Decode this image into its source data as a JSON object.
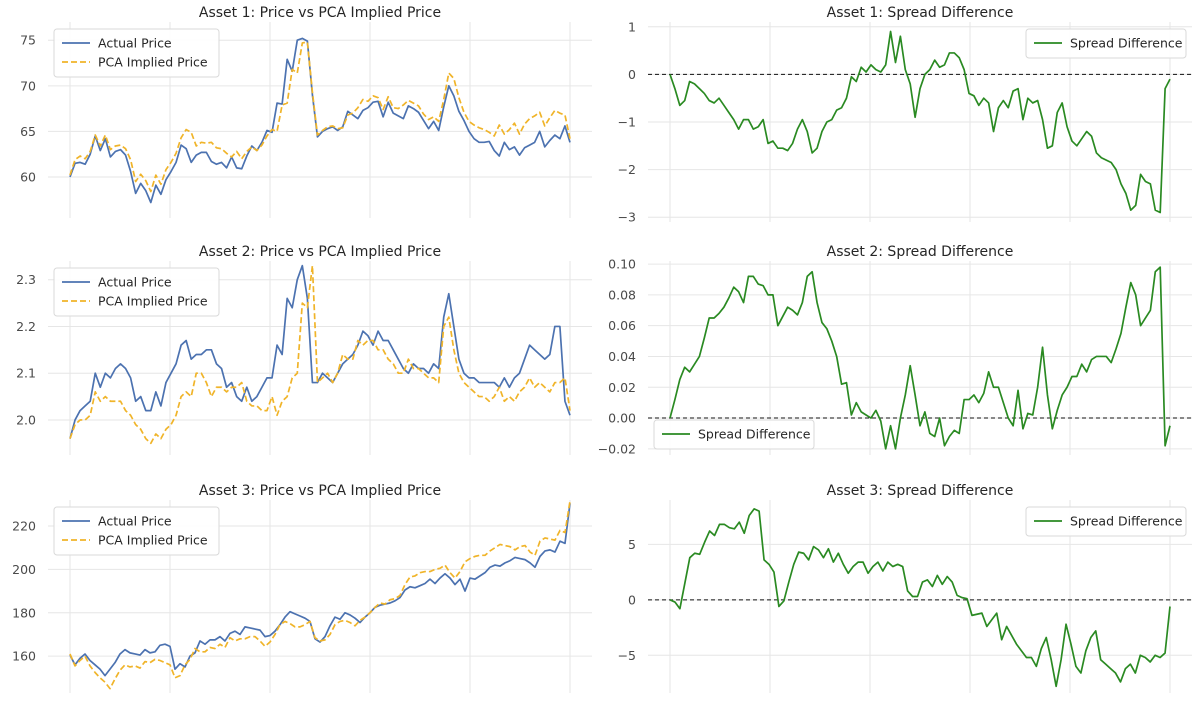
{
  "chart_data": [
    {
      "type": "line",
      "title": "Asset 1: Price vs PCA Implied Price",
      "legend": "top-left",
      "grid": true,
      "ylim": [
        55.5,
        77.0
      ],
      "yticks": [
        "60",
        "65",
        "70",
        "75"
      ],
      "series": [
        {
          "name": "Actual Price",
          "color": "#4c72b0",
          "style": "solid",
          "values": [
            60.0,
            61.5,
            61.6,
            61.4,
            62.5,
            64.5,
            62.9,
            64.2,
            62.2,
            62.8,
            63.0,
            62.4,
            60.6,
            58.2,
            59.3,
            58.5,
            57.2,
            59.1,
            58.1,
            59.7,
            60.6,
            61.6,
            63.5,
            63.1,
            61.6,
            62.4,
            62.7,
            62.7,
            61.7,
            61.4,
            61.6,
            61.0,
            62.2,
            61.0,
            60.9,
            62.3,
            63.4,
            62.9,
            63.8,
            65.1,
            64.9,
            68.1,
            68.0,
            72.9,
            71.6,
            75.0,
            75.2,
            74.9,
            69.0,
            64.4,
            65.0,
            65.3,
            65.5,
            65.1,
            65.5,
            67.2,
            66.8,
            66.4,
            67.3,
            67.6,
            68.2,
            68.3,
            66.6,
            68.2,
            67.0,
            66.7,
            66.4,
            67.8,
            67.5,
            67.1,
            66.2,
            65.3,
            66.1,
            65.1,
            67.7,
            70.0,
            68.9,
            67.2,
            66.2,
            65.0,
            64.2,
            63.8,
            63.8,
            63.9,
            62.9,
            62.3,
            63.8,
            63.0,
            63.3,
            62.4,
            63.2,
            63.5,
            63.8,
            65.0,
            63.3,
            64.0,
            64.6,
            64.2,
            65.6,
            63.8
          ]
        },
        {
          "name": "PCA Implied Price",
          "color": "#f0b429",
          "style": "dashed",
          "values": [
            60.2,
            61.9,
            62.3,
            62.0,
            62.8,
            64.6,
            63.4,
            64.6,
            63.0,
            63.4,
            63.5,
            63.1,
            61.9,
            59.5,
            60.3,
            59.6,
            58.4,
            60.2,
            59.2,
            60.8,
            61.6,
            62.6,
            64.3,
            65.2,
            64.9,
            63.4,
            63.8,
            63.7,
            63.8,
            63.2,
            63.1,
            62.6,
            62.2,
            62.8,
            62.0,
            62.8,
            63.3,
            62.9,
            63.5,
            64.5,
            65.2,
            65.0,
            67.9,
            68.1,
            71.8,
            71.4,
            74.7,
            74.8,
            69.3,
            64.6,
            65.1,
            65.5,
            65.6,
            65.3,
            65.4,
            66.8,
            67.0,
            67.6,
            68.5,
            68.3,
            68.9,
            68.7,
            67.4,
            68.8,
            67.6,
            67.5,
            67.9,
            68.4,
            68.1,
            67.8,
            66.9,
            66.3,
            66.6,
            66.1,
            68.5,
            71.4,
            70.8,
            68.7,
            67.1,
            66.1,
            65.7,
            65.4,
            65.2,
            64.9,
            64.5,
            65.7,
            64.7,
            65.2,
            65.9,
            64.7,
            65.8,
            66.4,
            66.7,
            67.1,
            65.6,
            66.5,
            67.3,
            67.0,
            66.8,
            64.2
          ]
        }
      ]
    },
    {
      "type": "line",
      "title": "Asset 1: Spread Difference",
      "legend": "top-right",
      "grid": true,
      "ylim": [
        -3.1,
        1.1
      ],
      "yticks": [
        "−3",
        "−2",
        "−1",
        "0",
        "1"
      ],
      "zero_line": true,
      "series": [
        {
          "name": "Spread Difference",
          "color": "#2a8a22",
          "style": "solid",
          "values": [
            0.0,
            -0.3,
            -0.65,
            -0.55,
            -0.15,
            -0.2,
            -0.3,
            -0.4,
            -0.55,
            -0.6,
            -0.5,
            -0.65,
            -0.8,
            -0.95,
            -1.15,
            -0.95,
            -0.95,
            -1.15,
            -1.1,
            -0.95,
            -1.45,
            -1.4,
            -1.55,
            -1.55,
            -1.6,
            -1.45,
            -1.15,
            -0.95,
            -1.2,
            -1.65,
            -1.55,
            -1.2,
            -1.0,
            -0.95,
            -0.75,
            -0.7,
            -0.5,
            -0.05,
            -0.15,
            0.15,
            0.05,
            0.2,
            0.1,
            0.05,
            0.2,
            0.9,
            0.25,
            0.8,
            0.1,
            -0.2,
            -0.9,
            -0.3,
            0.0,
            0.1,
            0.3,
            0.15,
            0.2,
            0.45,
            0.45,
            0.35,
            0.1,
            -0.4,
            -0.45,
            -0.65,
            -0.5,
            -0.6,
            -1.2,
            -0.7,
            -0.55,
            -0.7,
            -0.35,
            -0.3,
            -0.95,
            -0.5,
            -0.6,
            -0.55,
            -0.95,
            -1.55,
            -1.5,
            -0.8,
            -0.6,
            -1.1,
            -1.4,
            -1.5,
            -1.35,
            -1.2,
            -1.3,
            -1.65,
            -1.75,
            -1.8,
            -1.85,
            -2.0,
            -2.3,
            -2.5,
            -2.85,
            -2.75,
            -2.1,
            -2.25,
            -2.3,
            -2.85,
            -2.9,
            -0.3,
            -0.1
          ]
        }
      ]
    },
    {
      "type": "line",
      "title": "Asset 2: Price vs PCA Implied Price",
      "legend": "top-left",
      "grid": true,
      "ylim": [
        1.925,
        2.34
      ],
      "yticks": [
        "2.0",
        "2.1",
        "2.2",
        "2.3"
      ],
      "series": [
        {
          "name": "Actual Price",
          "color": "#4c72b0",
          "style": "solid",
          "values": [
            1.96,
            2.0,
            2.02,
            2.03,
            2.04,
            2.1,
            2.07,
            2.1,
            2.09,
            2.11,
            2.12,
            2.11,
            2.09,
            2.04,
            2.05,
            2.02,
            2.02,
            2.06,
            2.03,
            2.08,
            2.1,
            2.12,
            2.16,
            2.17,
            2.13,
            2.14,
            2.14,
            2.15,
            2.15,
            2.12,
            2.11,
            2.07,
            2.08,
            2.05,
            2.04,
            2.07,
            2.04,
            2.05,
            2.07,
            2.09,
            2.09,
            2.16,
            2.14,
            2.26,
            2.24,
            2.3,
            2.33,
            2.26,
            2.08,
            2.08,
            2.1,
            2.09,
            2.08,
            2.1,
            2.12,
            2.13,
            2.14,
            2.16,
            2.19,
            2.18,
            2.16,
            2.19,
            2.17,
            2.17,
            2.15,
            2.13,
            2.11,
            2.1,
            2.12,
            2.11,
            2.11,
            2.1,
            2.12,
            2.11,
            2.22,
            2.27,
            2.2,
            2.13,
            2.1,
            2.09,
            2.09,
            2.08,
            2.08,
            2.08,
            2.08,
            2.07,
            2.09,
            2.07,
            2.09,
            2.1,
            2.13,
            2.16,
            2.15,
            2.14,
            2.13,
            2.14,
            2.2,
            2.2,
            2.04,
            2.01
          ]
        },
        {
          "name": "PCA Implied Price",
          "color": "#f0b429",
          "style": "dashed",
          "values": [
            1.96,
            1.99,
            2.0,
            2.0,
            2.01,
            2.06,
            2.04,
            2.05,
            2.04,
            2.04,
            2.04,
            2.02,
            2.01,
            1.99,
            1.98,
            1.96,
            1.95,
            1.97,
            1.96,
            1.98,
            1.99,
            2.01,
            2.05,
            2.06,
            2.05,
            2.1,
            2.1,
            2.08,
            2.05,
            2.07,
            2.07,
            2.06,
            2.07,
            2.07,
            2.08,
            2.04,
            2.03,
            2.03,
            2.02,
            2.02,
            2.05,
            2.01,
            2.04,
            2.05,
            2.09,
            2.1,
            2.25,
            2.24,
            2.33,
            2.08,
            2.09,
            2.1,
            2.08,
            2.1,
            2.14,
            2.13,
            2.13,
            2.17,
            2.16,
            2.17,
            2.17,
            2.15,
            2.15,
            2.13,
            2.12,
            2.1,
            2.1,
            2.13,
            2.11,
            2.11,
            2.1,
            2.09,
            2.09,
            2.08,
            2.2,
            2.22,
            2.15,
            2.1,
            2.08,
            2.07,
            2.06,
            2.05,
            2.05,
            2.04,
            2.05,
            2.07,
            2.04,
            2.05,
            2.04,
            2.06,
            2.07,
            2.09,
            2.07,
            2.08,
            2.07,
            2.06,
            2.08,
            2.08,
            2.09,
            2.02
          ]
        }
      ]
    },
    {
      "type": "line",
      "title": "Asset 2: Spread Difference",
      "legend": "lower-left",
      "grid": true,
      "ylim": [
        -0.024,
        0.102
      ],
      "yticks": [
        "−0.02",
        "0.00",
        "0.02",
        "0.04",
        "0.06",
        "0.08",
        "0.10"
      ],
      "zero_line": true,
      "series": [
        {
          "name": "Spread Difference",
          "color": "#2a8a22",
          "style": "solid",
          "values": [
            0.0,
            0.012,
            0.025,
            0.033,
            0.03,
            0.035,
            0.04,
            0.052,
            0.065,
            0.065,
            0.068,
            0.072,
            0.078,
            0.085,
            0.082,
            0.075,
            0.092,
            0.092,
            0.087,
            0.086,
            0.08,
            0.08,
            0.06,
            0.066,
            0.072,
            0.07,
            0.067,
            0.075,
            0.092,
            0.095,
            0.075,
            0.062,
            0.058,
            0.05,
            0.04,
            0.022,
            0.023,
            0.002,
            0.01,
            0.004,
            0.002,
            0.0,
            0.005,
            -0.002,
            -0.02,
            -0.005,
            -0.02,
            0.0,
            0.015,
            0.034,
            0.015,
            -0.005,
            0.004,
            -0.01,
            -0.012,
            0.0,
            -0.018,
            -0.012,
            -0.008,
            -0.01,
            0.012,
            0.012,
            0.015,
            0.01,
            0.016,
            0.03,
            0.02,
            0.02,
            0.01,
            0.0,
            -0.005,
            0.018,
            -0.007,
            0.003,
            0.002,
            0.02,
            0.046,
            0.015,
            -0.007,
            0.005,
            0.015,
            0.02,
            0.027,
            0.027,
            0.035,
            0.03,
            0.038,
            0.04,
            0.04,
            0.04,
            0.036,
            0.045,
            0.055,
            0.072,
            0.088,
            0.08,
            0.06,
            0.065,
            0.07,
            0.095,
            0.098,
            -0.018,
            -0.005
          ]
        }
      ]
    },
    {
      "type": "line",
      "title": "Asset 3: Price vs PCA Implied Price",
      "legend": "top-left",
      "grid": true,
      "ylim": [
        143,
        232
      ],
      "yticks": [
        "160",
        "180",
        "200",
        "220"
      ],
      "series": [
        {
          "name": "Actual Price",
          "color": "#4c72b0",
          "style": "solid",
          "values": [
            160.5,
            156.0,
            159.0,
            161.0,
            158.0,
            156.0,
            154.0,
            151.0,
            154.0,
            157.0,
            161.0,
            163.0,
            161.5,
            161.0,
            160.5,
            163.0,
            161.5,
            162.0,
            165.0,
            165.5,
            164.5,
            154.0,
            156.5,
            155.0,
            160.0,
            161.5,
            167.0,
            165.5,
            167.5,
            167.5,
            169.0,
            167.0,
            170.5,
            171.5,
            170.0,
            173.5,
            173.0,
            172.5,
            172.0,
            169.0,
            169.5,
            171.5,
            174.5,
            178.0,
            180.5,
            179.5,
            178.5,
            177.5,
            176.0,
            168.0,
            166.5,
            169.0,
            174.0,
            178.0,
            177.0,
            180.0,
            179.0,
            177.5,
            175.5,
            178.0,
            180.0,
            182.5,
            183.5,
            184.0,
            184.5,
            185.5,
            187.0,
            190.5,
            192.0,
            191.5,
            192.5,
            193.5,
            195.5,
            193.5,
            196.0,
            198.0,
            196.0,
            193.0,
            195.5,
            190.0,
            196.0,
            195.5,
            197.0,
            198.5,
            201.0,
            202.0,
            201.5,
            203.0,
            204.0,
            205.5,
            205.0,
            204.5,
            203.0,
            201.0,
            206.0,
            208.5,
            209.0,
            208.0,
            213.0,
            212.0,
            230.5
          ]
        },
        {
          "name": "PCA Implied Price",
          "color": "#f0b429",
          "style": "dashed",
          "values": [
            161.0,
            155.5,
            158.0,
            160.0,
            155.5,
            152.5,
            150.0,
            148.0,
            145.0,
            149.5,
            153.5,
            156.0,
            155.0,
            155.5,
            154.5,
            157.5,
            157.0,
            158.5,
            158.0,
            157.0,
            156.0,
            150.0,
            151.0,
            156.0,
            158.5,
            163.5,
            162.0,
            162.0,
            164.0,
            163.5,
            165.5,
            164.0,
            168.5,
            167.0,
            168.0,
            168.0,
            169.0,
            169.0,
            167.0,
            164.5,
            166.5,
            170.0,
            174.5,
            176.0,
            175.0,
            173.5,
            173.5,
            174.5,
            176.0,
            168.5,
            167.0,
            167.5,
            170.0,
            174.5,
            176.0,
            176.5,
            175.5,
            174.0,
            176.5,
            178.0,
            180.0,
            182.5,
            184.5,
            184.0,
            186.0,
            186.5,
            188.0,
            193.0,
            196.5,
            197.0,
            198.5,
            199.0,
            199.0,
            200.0,
            200.5,
            202.0,
            198.5,
            196.0,
            199.0,
            203.5,
            205.0,
            206.0,
            206.5,
            206.5,
            208.5,
            210.0,
            211.5,
            211.0,
            210.5,
            209.0,
            210.5,
            211.0,
            208.0,
            206.5,
            213.0,
            214.5,
            214.0,
            213.5,
            218.0,
            217.0,
            231.5
          ]
        }
      ]
    },
    {
      "type": "line",
      "title": "Asset 3: Spread Difference",
      "legend": "top-right",
      "grid": true,
      "ylim": [
        -8.4,
        9.0
      ],
      "yticks": [
        "−5",
        "0",
        "5"
      ],
      "zero_line": true,
      "series": [
        {
          "name": "Spread Difference",
          "color": "#2a8a22",
          "style": "solid",
          "values": [
            0.0,
            -0.2,
            -0.8,
            1.5,
            3.8,
            4.2,
            4.1,
            5.2,
            6.2,
            5.8,
            6.8,
            6.8,
            6.5,
            6.4,
            7.0,
            6.0,
            7.6,
            8.2,
            8.0,
            3.6,
            3.2,
            2.5,
            -0.6,
            -0.1,
            1.6,
            3.2,
            4.3,
            4.2,
            3.6,
            4.8,
            4.5,
            3.8,
            4.6,
            3.4,
            4.2,
            3.2,
            2.4,
            3.0,
            3.4,
            3.4,
            2.4,
            3.0,
            3.4,
            2.6,
            3.4,
            3.0,
            3.2,
            3.0,
            0.8,
            0.3,
            0.3,
            1.6,
            1.8,
            1.2,
            2.2,
            1.4,
            2.1,
            1.6,
            0.4,
            0.2,
            0.1,
            -1.4,
            -1.3,
            -1.2,
            -2.4,
            -1.8,
            -1.2,
            -3.6,
            -2.4,
            -3.2,
            -4.0,
            -4.6,
            -5.2,
            -5.2,
            -6.0,
            -4.4,
            -3.4,
            -5.4,
            -7.8,
            -5.4,
            -2.2,
            -4.0,
            -6.0,
            -6.6,
            -4.6,
            -3.4,
            -2.8,
            -5.4,
            -5.8,
            -6.2,
            -6.6,
            -7.4,
            -6.2,
            -5.8,
            -6.6,
            -5.0,
            -5.2,
            -5.6,
            -5.0,
            -5.2,
            -4.8,
            -0.6
          ]
        }
      ]
    }
  ]
}
